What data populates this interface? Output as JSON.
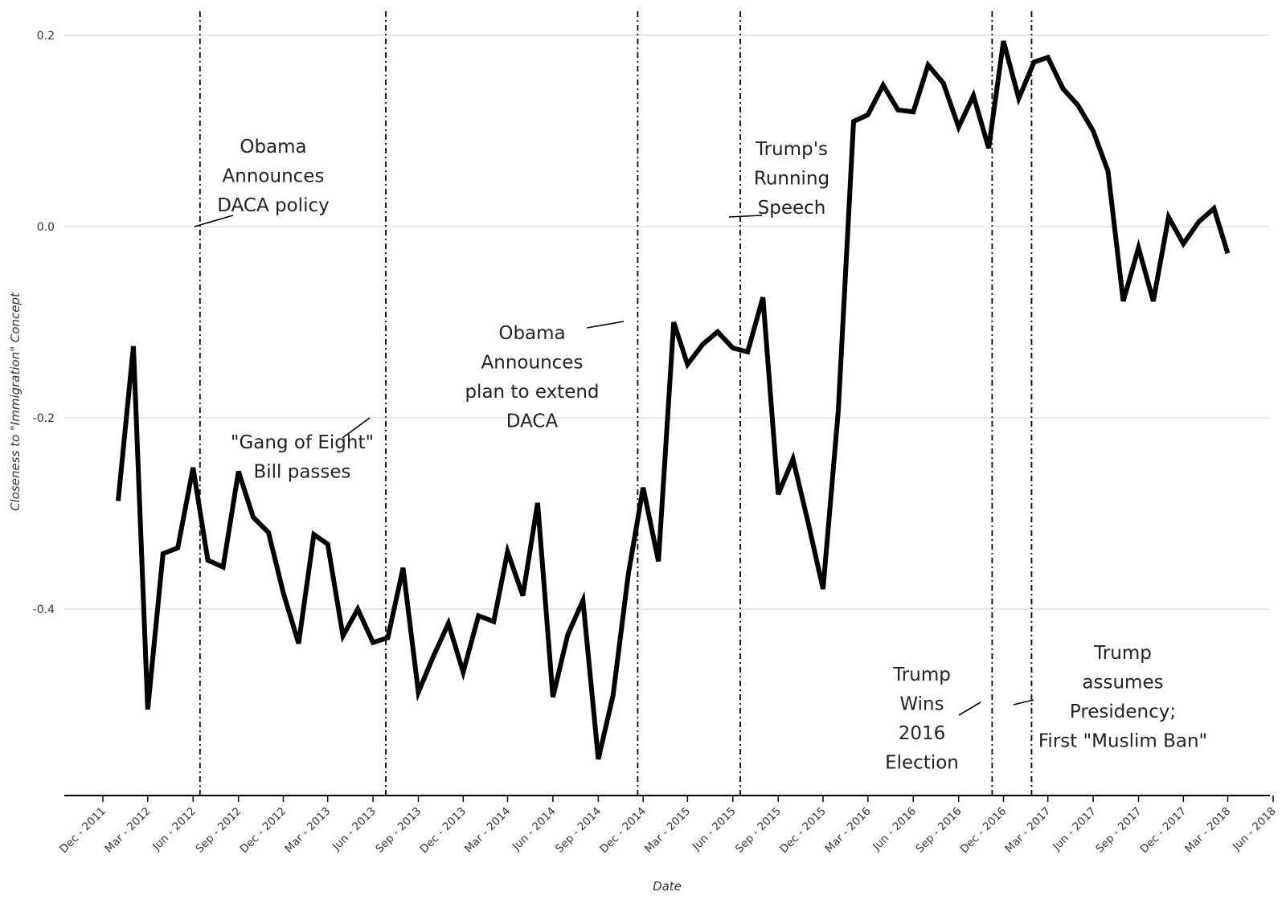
{
  "chart_data": {
    "type": "line",
    "title": "",
    "xlabel": "Date",
    "ylabel": "Closeness to \"Immigration\" Concept",
    "ylim": [
      -0.59,
      0.22
    ],
    "yticks": [
      0.2,
      0.0,
      -0.2,
      -0.4
    ],
    "ytick_labels": [
      "0.2",
      "0.0",
      "-0.2",
      "-0.4"
    ],
    "grid": "horizontal",
    "xticks": [
      "2011-12",
      "2012-03",
      "2012-06",
      "2012-09",
      "2012-12",
      "2013-03",
      "2013-06",
      "2013-09",
      "2013-12",
      "2014-03",
      "2014-06",
      "2014-09",
      "2014-12",
      "2015-03",
      "2015-06",
      "2015-09",
      "2015-12",
      "2016-03",
      "2016-06",
      "2016-09",
      "2016-12",
      "2017-03",
      "2017-06",
      "2017-09",
      "2017-12",
      "2018-03",
      "2018-06"
    ],
    "xtick_labels": [
      "Dec - 2011",
      "Mar - 2012",
      "Jun - 2012",
      "Sep - 2012",
      "Dec - 2012",
      "Mar - 2013",
      "Jun - 2013",
      "Sep - 2013",
      "Dec - 2013",
      "Mar - 2014",
      "Jun - 2014",
      "Sep - 2014",
      "Dec - 2014",
      "Mar - 2015",
      "Jun - 2015",
      "Sep - 2015",
      "Dec - 2015",
      "Mar - 2016",
      "Jun - 2016",
      "Sep - 2016",
      "Dec - 2016",
      "Mar - 2017",
      "Jun - 2017",
      "Sep - 2017",
      "Dec - 2017",
      "Mar - 2018",
      "Jun - 2018"
    ],
    "series": [
      {
        "color": "#000000",
        "x": [
          "2012-01",
          "2012-02",
          "2012-03",
          "2012-04",
          "2012-05",
          "2012-06",
          "2012-07",
          "2012-08",
          "2012-09",
          "2012-10",
          "2012-11",
          "2012-12",
          "2013-01",
          "2013-02",
          "2013-03",
          "2013-04",
          "2013-05",
          "2013-06",
          "2013-07",
          "2013-08",
          "2013-09",
          "2013-10",
          "2013-11",
          "2013-12",
          "2014-01",
          "2014-02",
          "2014-03",
          "2014-04",
          "2014-05",
          "2014-06",
          "2014-07",
          "2014-08",
          "2014-09",
          "2014-10",
          "2014-11",
          "2014-12",
          "2015-01",
          "2015-02",
          "2015-03",
          "2015-04",
          "2015-05",
          "2015-06",
          "2015-07",
          "2015-08",
          "2015-09",
          "2015-10",
          "2015-11",
          "2015-12",
          "2016-01",
          "2016-02",
          "2016-03",
          "2016-04",
          "2016-05",
          "2016-06",
          "2016-07",
          "2016-08",
          "2016-09",
          "2016-10",
          "2016-11",
          "2016-12",
          "2017-01",
          "2017-02",
          "2017-03",
          "2017-04",
          "2017-05",
          "2017-06",
          "2017-07",
          "2017-08",
          "2017-09",
          "2017-10",
          "2017-11",
          "2017-12",
          "2018-01",
          "2018-02",
          "2018-03"
        ],
        "values": [
          -0.287,
          -0.125,
          -0.505,
          -0.342,
          -0.336,
          -0.252,
          -0.349,
          -0.356,
          -0.256,
          -0.304,
          -0.32,
          -0.383,
          -0.436,
          -0.322,
          -0.332,
          -0.428,
          -0.4,
          -0.435,
          -0.43,
          -0.357,
          -0.487,
          -0.45,
          -0.415,
          -0.466,
          -0.407,
          -0.413,
          -0.34,
          -0.386,
          -0.289,
          -0.492,
          -0.427,
          -0.391,
          -0.557,
          -0.49,
          -0.363,
          -0.273,
          -0.35,
          -0.1,
          -0.144,
          -0.123,
          -0.11,
          -0.127,
          -0.131,
          -0.074,
          -0.28,
          -0.243,
          -0.31,
          -0.379,
          -0.192,
          0.11,
          0.117,
          0.148,
          0.122,
          0.12,
          0.169,
          0.15,
          0.104,
          0.137,
          0.082,
          0.194,
          0.134,
          0.172,
          0.177,
          0.144,
          0.127,
          0.1,
          0.058,
          -0.078,
          -0.022,
          -0.078,
          0.01,
          -0.018,
          0.005,
          0.019,
          -0.028
        ]
      }
    ],
    "events": [
      {
        "x": "2012-06-15",
        "label_lines": [
          "Obama",
          "Announces",
          "DACA policy"
        ],
        "side": "right"
      },
      {
        "x": "2013-06-27",
        "label_lines": [
          "\"Gang of Eight\"",
          "Bill passes"
        ],
        "side": "left"
      },
      {
        "x": "2014-11-20",
        "label_lines": [
          "Obama",
          "Announces",
          "plan to extend",
          "DACA"
        ],
        "side": "left"
      },
      {
        "x": "2015-06-16",
        "label_lines": [
          "Trump's",
          "Running",
          "Speech"
        ],
        "side": "right"
      },
      {
        "x": "2016-11-08",
        "label_lines": [
          "Trump",
          "Wins",
          "2016",
          "Election"
        ],
        "side": "left"
      },
      {
        "x": "2017-01-27",
        "label_lines": [
          "Trump",
          "assumes",
          "Presidency;",
          "First \"Muslim Ban\""
        ],
        "side": "right"
      }
    ]
  }
}
